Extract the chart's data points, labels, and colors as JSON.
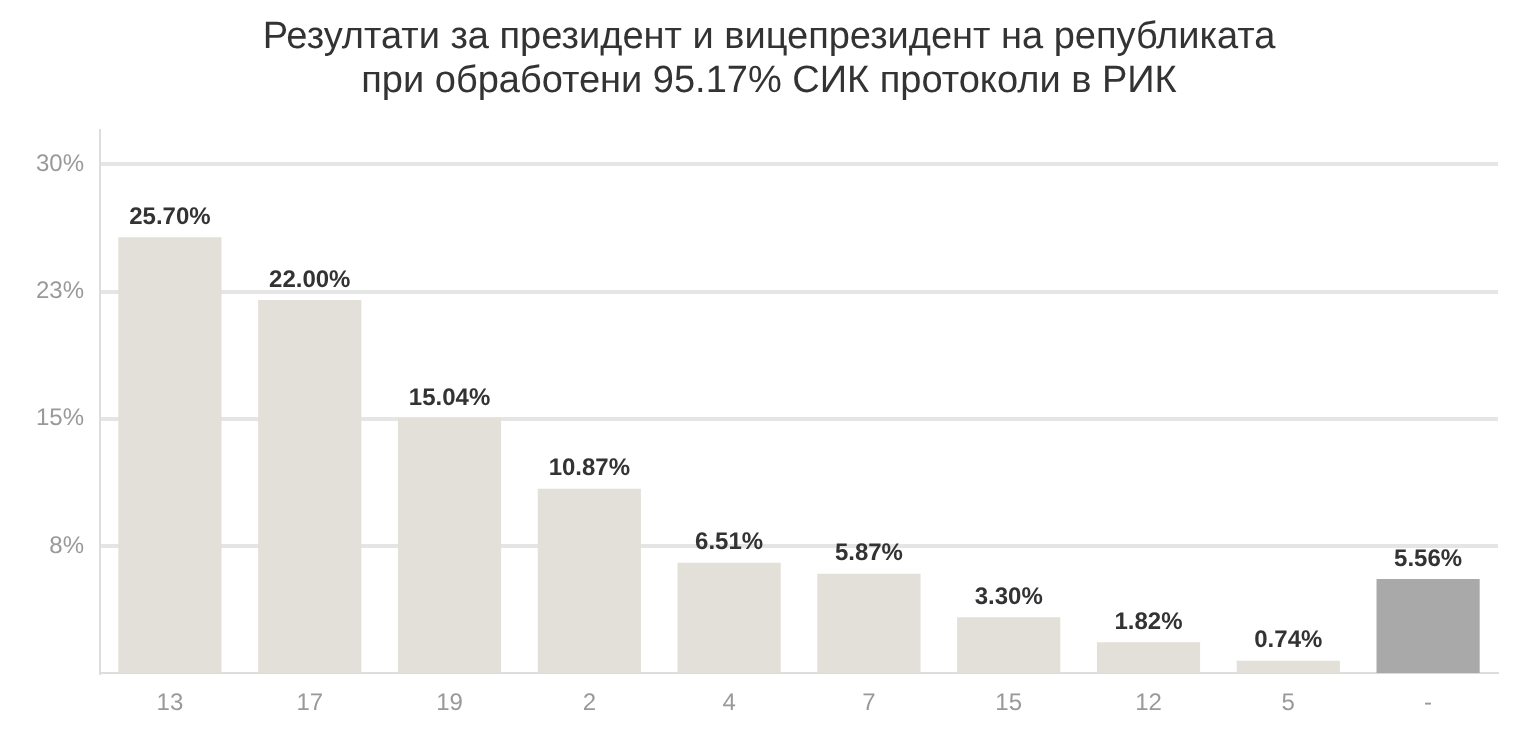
{
  "chart_data": {
    "type": "bar",
    "title": "Резултати за президент и вицепрезидент на републиката при обработени 95.17% СИК протоколи в РИК",
    "categories": [
      "13",
      "17",
      "19",
      "2",
      "4",
      "7",
      "15",
      "12",
      "5",
      "-"
    ],
    "values": [
      25.7,
      22.0,
      15.04,
      10.87,
      6.51,
      5.87,
      3.3,
      1.82,
      0.74,
      5.56
    ],
    "colors": [
      "#e3dfd9",
      "#e3dfd9",
      "#e3dfd9",
      "#e3dfd9",
      "#e3dfd9",
      "#e3dfd9",
      "#e3dfd9",
      "#e3dfd9",
      "#e3dfd9",
      "#a9a9a9"
    ],
    "value_labels": [
      "25.70%",
      "22.00%",
      "15.04%",
      "10.87%",
      "6.51%",
      "5.87%",
      "3.30%",
      "1.82%",
      "0.74%",
      "5.56%"
    ],
    "ylim": [
      0,
      32
    ],
    "yticks": [
      {
        "value": 7.5,
        "label": "8%"
      },
      {
        "value": 15,
        "label": "15%"
      },
      {
        "value": 22.5,
        "label": "23%"
      },
      {
        "value": 30,
        "label": "30%"
      }
    ],
    "grid": "y",
    "legend": false
  }
}
